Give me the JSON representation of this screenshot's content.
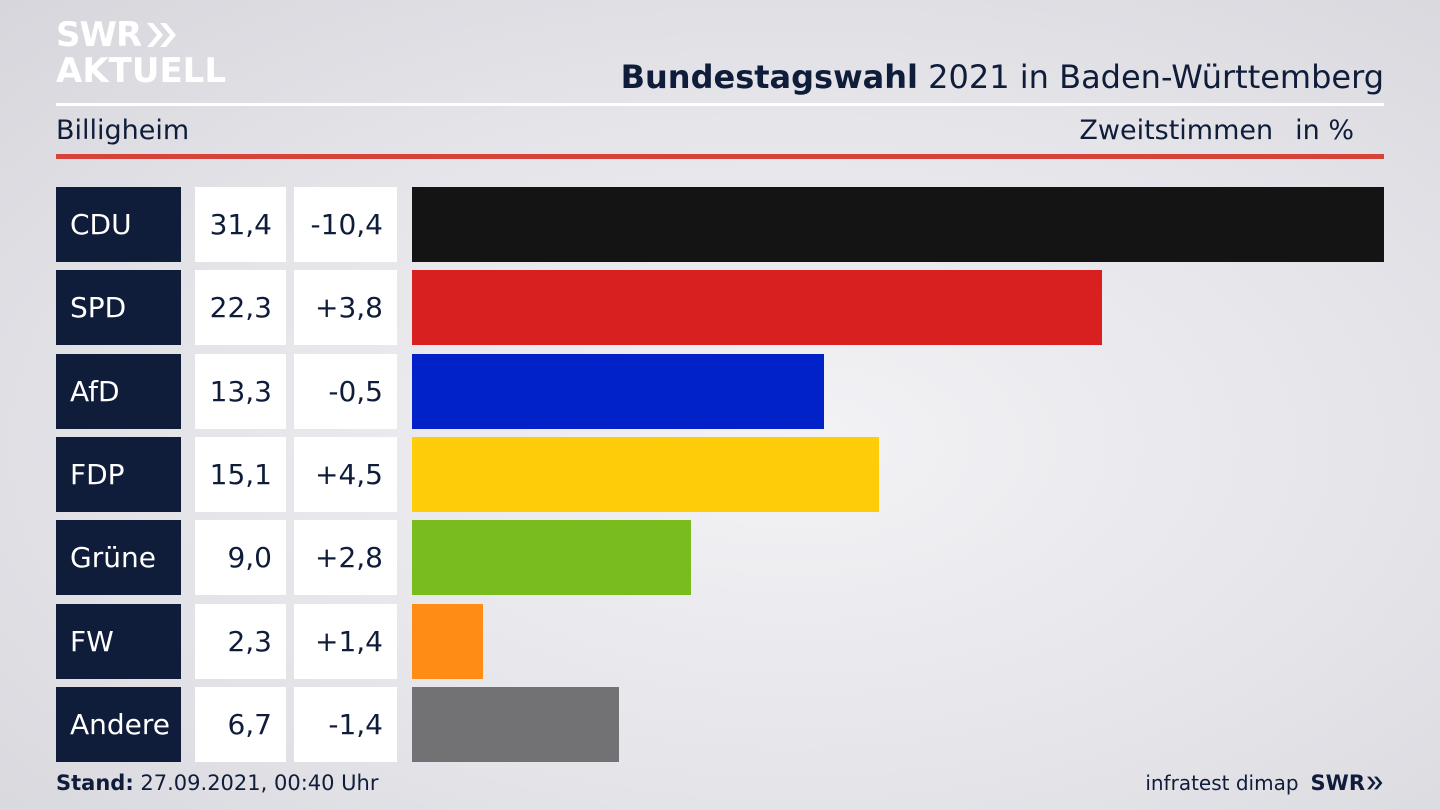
{
  "logo": {
    "line1": "SWR",
    "line2": "AKTUELL"
  },
  "header": {
    "title_bold": "Bundestagswahl",
    "title_rest": " 2021 in Baden-Württemberg",
    "region": "Billigheim",
    "metric": "Zweitstimmen",
    "unit": "in %"
  },
  "chart_data": {
    "type": "bar",
    "orientation": "horizontal",
    "categories": [
      "CDU",
      "SPD",
      "AfD",
      "FDP",
      "Grüne",
      "FW",
      "Andere"
    ],
    "values": [
      31.4,
      22.3,
      13.3,
      15.1,
      9.0,
      2.3,
      6.7
    ],
    "value_labels": [
      "31,4",
      "22,3",
      "13,3",
      "15,1",
      "9,0",
      "2,3",
      "6,7"
    ],
    "changes": [
      -10.4,
      3.8,
      -0.5,
      4.5,
      2.8,
      1.4,
      -1.4
    ],
    "change_labels": [
      "-10,4",
      "+3,8",
      "-0,5",
      "+4,5",
      "+2,8",
      "+1,4",
      "-1,4"
    ],
    "colors": [
      "#141414",
      "#d92020",
      "#0022c8",
      "#ffcc0a",
      "#78bc1e",
      "#ff8c14",
      "#727275"
    ],
    "xlim": [
      0,
      31.4
    ],
    "grid": false,
    "legend": "none"
  },
  "footer": {
    "stand_label": "Stand:",
    "stand_value": " 27.09.2021, 00:40 Uhr",
    "source": "infratest dimap",
    "brand": "SWR"
  }
}
